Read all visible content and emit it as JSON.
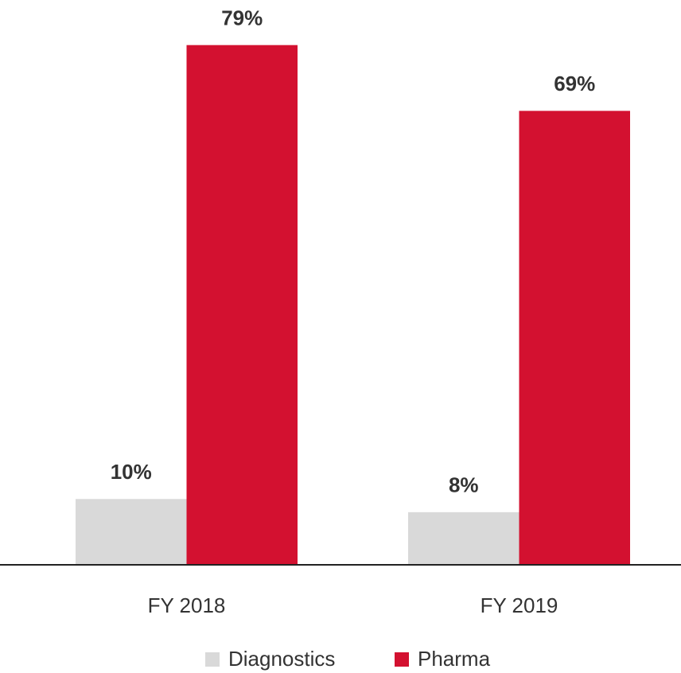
{
  "chart_data": {
    "type": "bar",
    "categories": [
      "FY 2018",
      "FY 2019"
    ],
    "series": [
      {
        "name": "Diagnostics",
        "color": "#d9d9d9",
        "values": [
          10,
          8
        ],
        "value_labels": [
          "10%",
          "8%"
        ]
      },
      {
        "name": "Pharma",
        "color": "#d31130",
        "values": [
          79,
          69
        ],
        "value_labels": [
          "79%",
          "69%"
        ]
      }
    ]
  }
}
